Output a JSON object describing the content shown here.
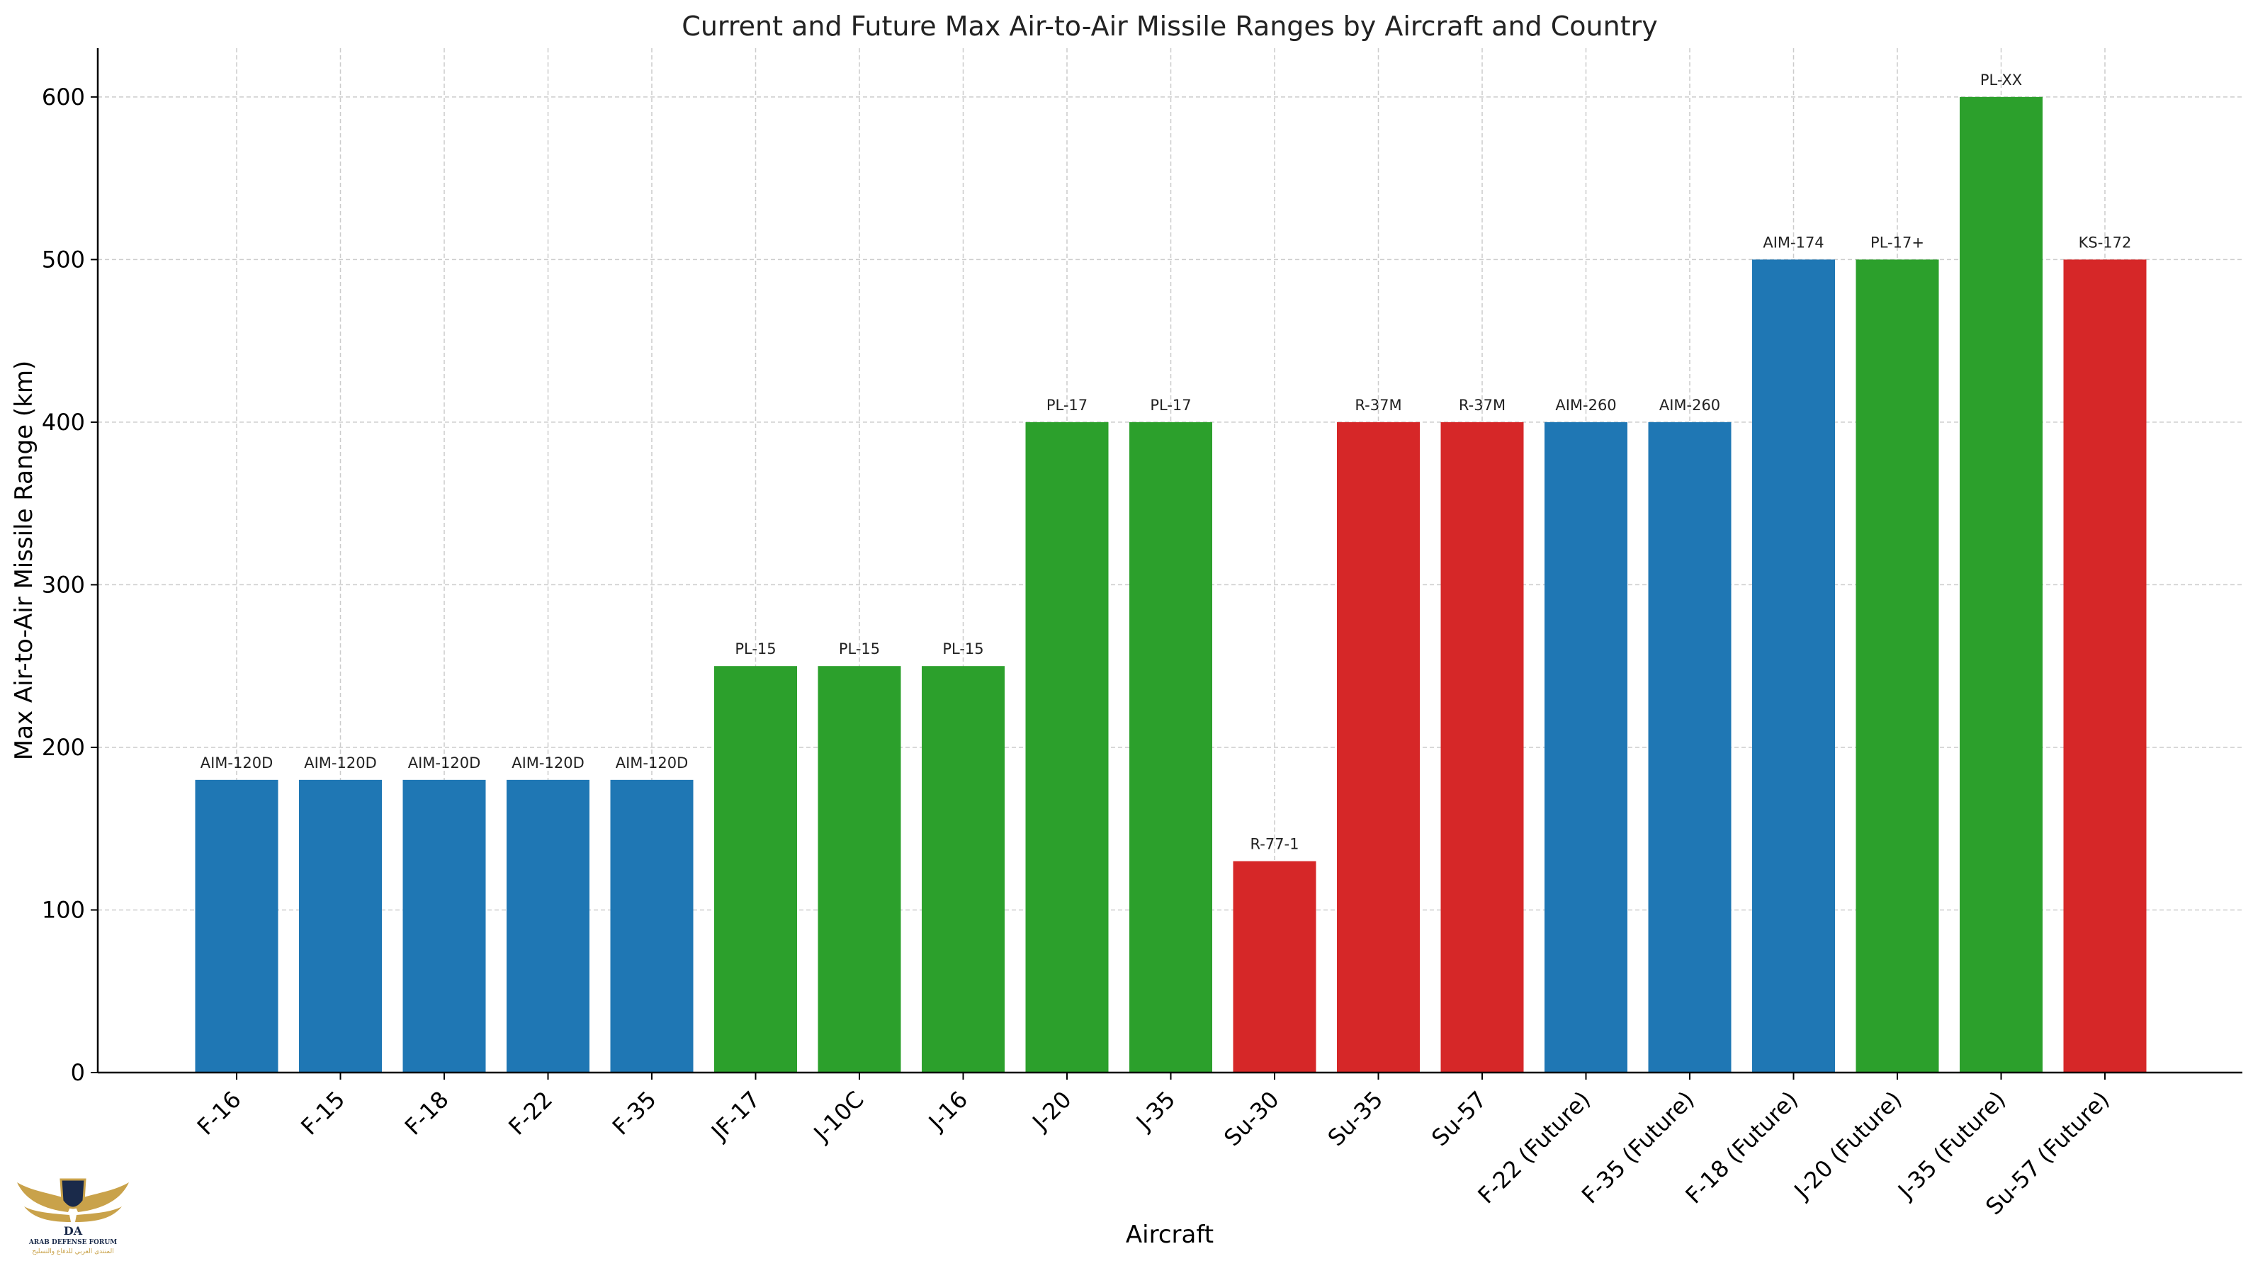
{
  "chart_data": {
    "type": "bar",
    "title": "Current and Future Max Air-to-Air Missile Ranges by Aircraft and Country",
    "xlabel": "Aircraft",
    "ylabel": "Max Air-to-Air Missile Range (km)",
    "ylim": [
      0,
      630
    ],
    "yticks": [
      0,
      100,
      200,
      300,
      400,
      500,
      600
    ],
    "grid": true,
    "categories": [
      "F-16",
      "F-15",
      "F-18",
      "F-22",
      "F-35",
      "JF-17",
      "J-10C",
      "J-16",
      "J-20",
      "J-35",
      "Su-30",
      "Su-35",
      "Su-57",
      "F-22 (Future)",
      "F-35 (Future)",
      "F-18 (Future)",
      "J-20 (Future)",
      "J-35 (Future)",
      "Su-57 (Future)"
    ],
    "values": [
      180,
      180,
      180,
      180,
      180,
      250,
      250,
      250,
      400,
      400,
      130,
      400,
      400,
      400,
      400,
      500,
      500,
      600,
      500
    ],
    "bar_labels": [
      "AIM-120D",
      "AIM-120D",
      "AIM-120D",
      "AIM-120D",
      "AIM-120D",
      "PL-15",
      "PL-15",
      "PL-15",
      "PL-17",
      "PL-17",
      "R-77-1",
      "R-37M",
      "R-37M",
      "AIM-260",
      "AIM-260",
      "AIM-174",
      "PL-17+",
      "PL-XX",
      "KS-172"
    ],
    "colors": [
      "#1f77b4",
      "#1f77b4",
      "#1f77b4",
      "#1f77b4",
      "#1f77b4",
      "#2ca02c",
      "#2ca02c",
      "#2ca02c",
      "#2ca02c",
      "#2ca02c",
      "#d62728",
      "#d62728",
      "#d62728",
      "#1f77b4",
      "#1f77b4",
      "#1f77b4",
      "#2ca02c",
      "#2ca02c",
      "#d62728"
    ]
  },
  "watermark": {
    "title": "ARAB DEFENSE FORUM",
    "subtitle": "المنتدى العربي للدفاع والتسليح"
  }
}
